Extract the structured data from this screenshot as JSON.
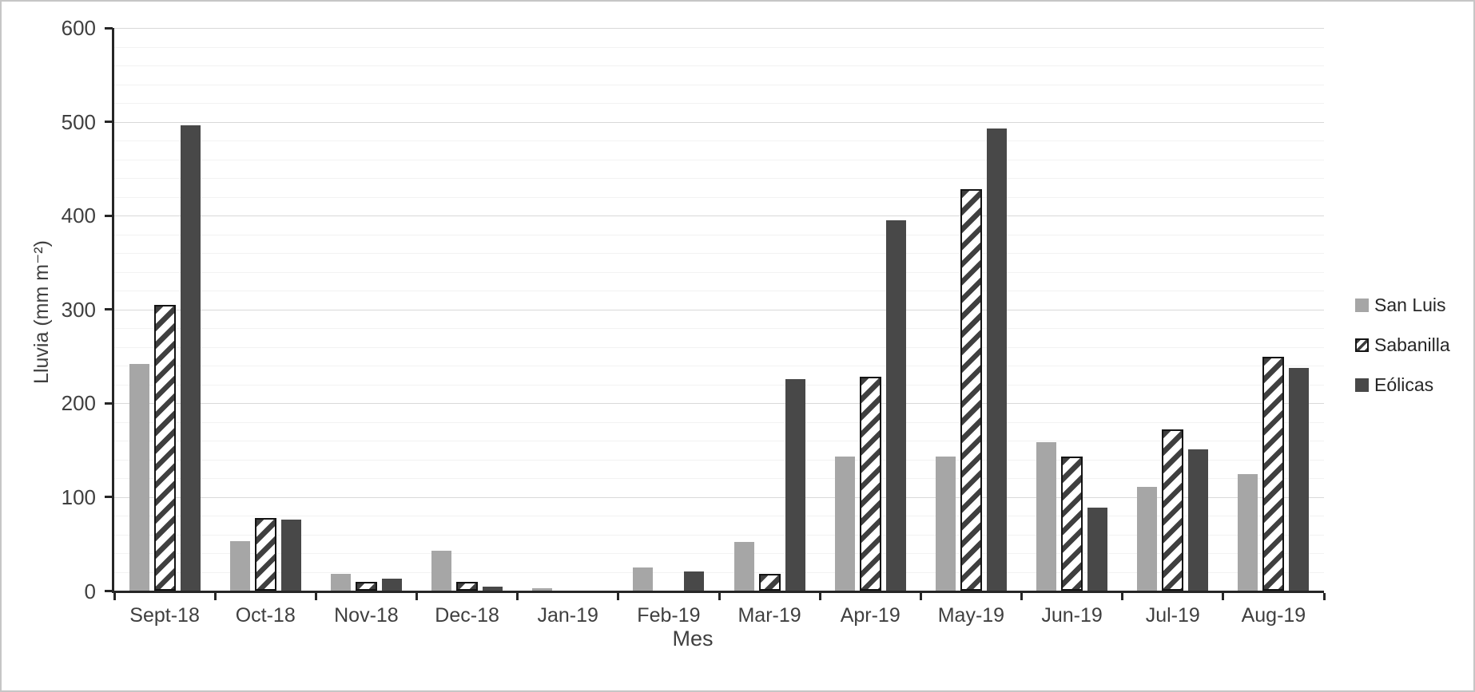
{
  "chart_data": {
    "type": "bar",
    "title": "",
    "xlabel": "Mes",
    "ylabel": "Lluvia (mm m⁻²)",
    "ylim": [
      0,
      600
    ],
    "ytick_step": 100,
    "minor_grid_step": 20,
    "grid": true,
    "legend_position": "right-middle",
    "y_tick_labels": [
      "0",
      "100",
      "200",
      "300",
      "400",
      "500",
      "600"
    ],
    "categories": [
      "Sept-18",
      "Oct-18",
      "Nov-18",
      "Dec-18",
      "Jan-19",
      "Feb-19",
      "Mar-19",
      "Apr-19",
      "May-19",
      "Jun-19",
      "Jul-19",
      "Aug-19"
    ],
    "series": [
      {
        "name": "San Luis",
        "fill": "solid",
        "color": "#a6a6a6",
        "values": [
          242,
          53,
          18,
          43,
          3,
          25,
          52,
          143,
          143,
          159,
          111,
          125
        ]
      },
      {
        "name": "Sabanilla",
        "fill": "diagonal-hatch",
        "color": "#ffffff",
        "hatch_color": "#3f3f3f",
        "border_color": "#141414",
        "values": [
          305,
          78,
          10,
          10,
          0,
          0,
          18,
          228,
          428,
          143,
          172,
          250
        ]
      },
      {
        "name": "Eólicas",
        "fill": "solid",
        "color": "#484848",
        "values": [
          496,
          76,
          13,
          5,
          0,
          21,
          226,
          395,
          493,
          89,
          151,
          238
        ]
      }
    ]
  },
  "axis_style": {
    "text_color": "#3f3f3f",
    "line_color": "#262626",
    "gridline_major": "#d9d9d9",
    "gridline_minor": "#f2f2f2"
  },
  "frame": {
    "background": "#ffffff",
    "border_color": "#c6c6c6"
  }
}
